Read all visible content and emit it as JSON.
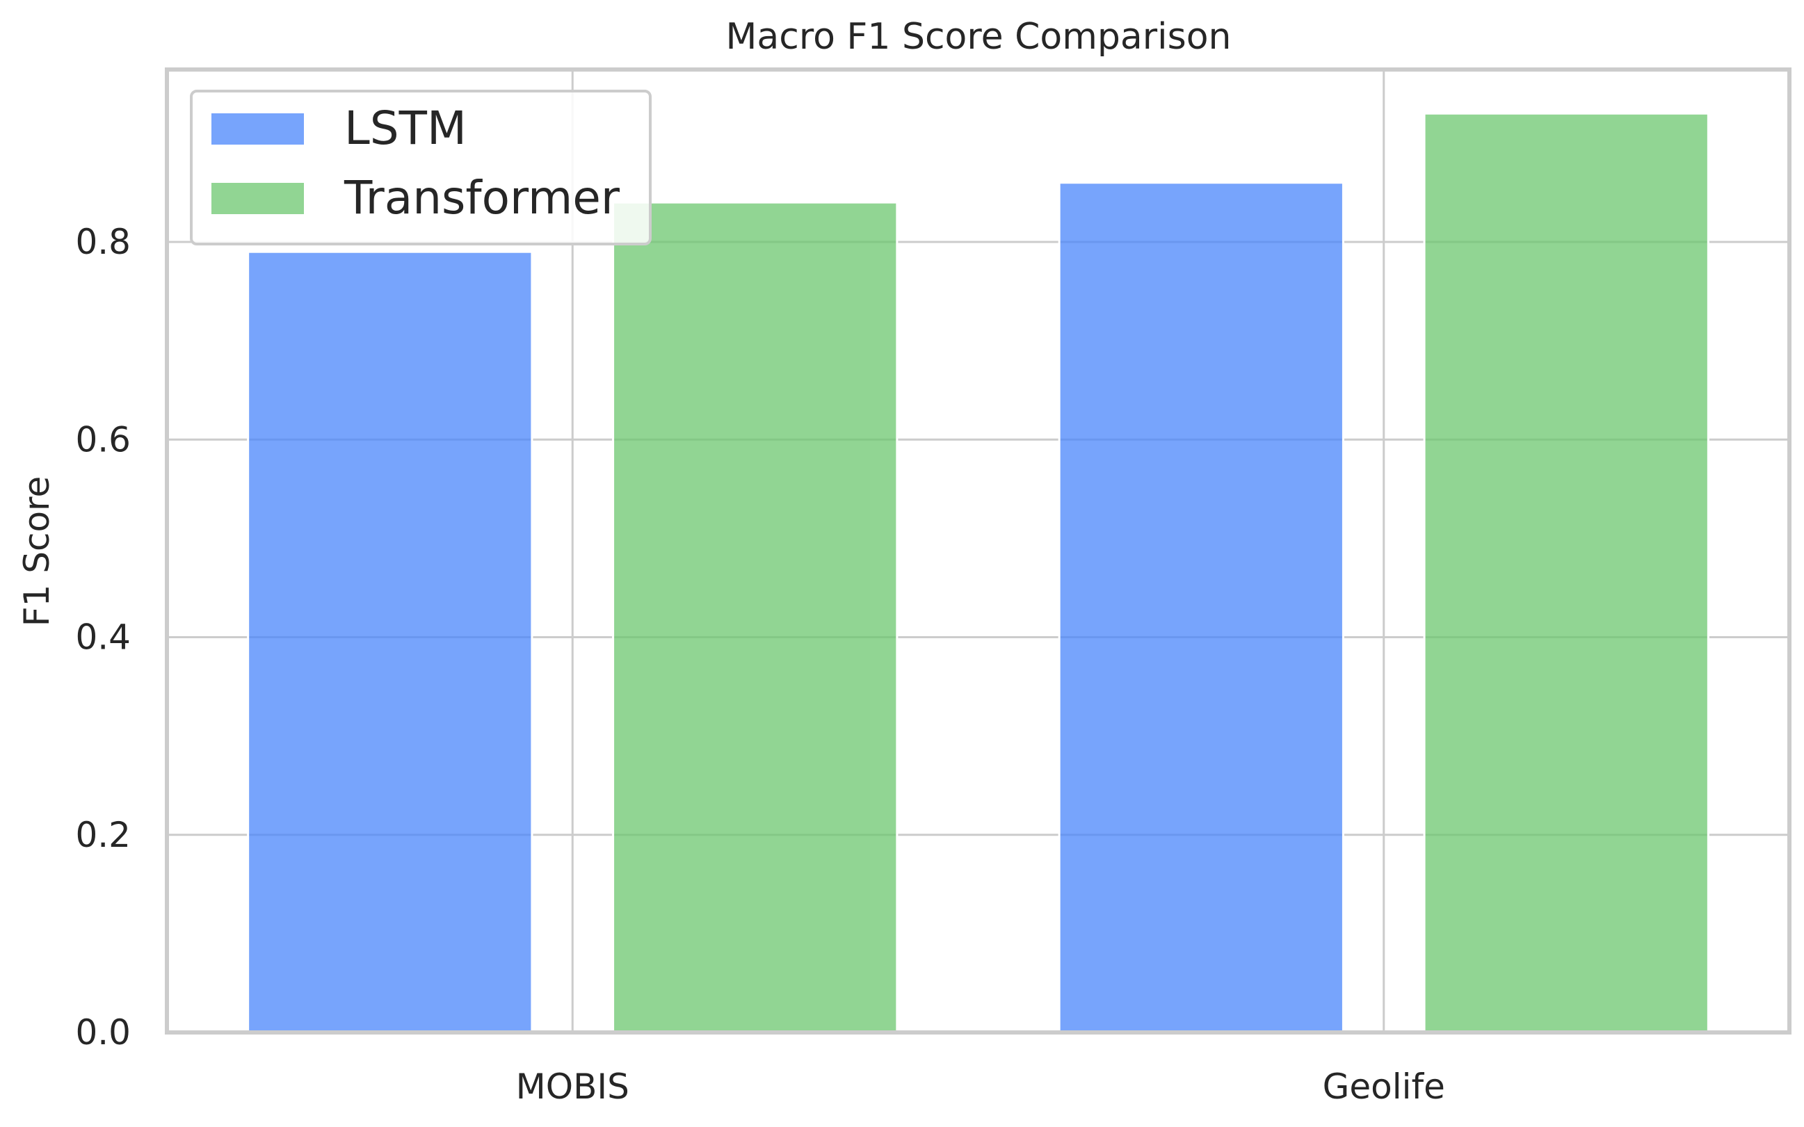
{
  "chart_data": {
    "type": "bar",
    "title": "Macro F1 Score Comparison",
    "xlabel": "",
    "ylabel": "F1 Score",
    "categories": [
      "MOBIS",
      "Geolife"
    ],
    "series": [
      {
        "name": "LSTM",
        "values": [
          0.79,
          0.86
        ],
        "color": "#4a86fb"
      },
      {
        "name": "Transformer",
        "values": [
          0.84,
          0.93
        ],
        "color": "#6cc76f"
      }
    ],
    "ylim": [
      0.0,
      0.9745
    ],
    "yticks": [
      0.0,
      0.2,
      0.4,
      0.6,
      0.8
    ],
    "ytick_labels": [
      "0.0",
      "0.2",
      "0.4",
      "0.6",
      "0.8"
    ],
    "grid": true,
    "legend_position": "top-left"
  }
}
